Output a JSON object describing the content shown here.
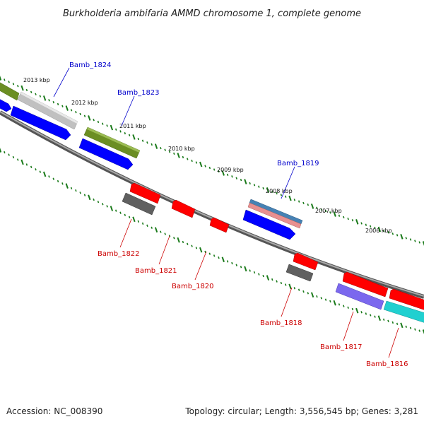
{
  "title": "Burkholderia ambifaria AMMD chromosome 1, complete genome",
  "footer": {
    "accession": "Accession: NC_008390",
    "summary": "Topology: circular; Length: 3,556,545 bp; Genes: 3,281"
  },
  "scale_labels": [
    "2013 kbp",
    "2012 kbp",
    "2011 kbp",
    "2010 kbp",
    "2009 kbp",
    "2008 kbp",
    "2007 kbp",
    "2006 kbp"
  ],
  "genes": {
    "forward": [
      "Bamb_1824",
      "Bamb_1823",
      "Bamb_1819"
    ],
    "reverse": [
      "Bamb_1822",
      "Bamb_1821",
      "Bamb_1820",
      "Bamb_1818",
      "Bamb_1817",
      "Bamb_1816"
    ]
  },
  "colors": {
    "forward_label": "#0000cc",
    "reverse_label": "#cc0000",
    "tick": "#1a7a1a",
    "backbone": "#808080"
  }
}
